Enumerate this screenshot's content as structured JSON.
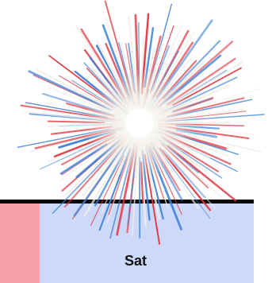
{
  "calendar": {
    "day_label": "Sat"
  },
  "colors": {
    "weekend_block": "#f9a1aa",
    "day_cell": "#cdd9f8",
    "header_rule": "#0a0a0a",
    "firework_red": "#e0303a",
    "firework_blue": "#3a7fd8",
    "firework_white": "#f2efe8"
  },
  "decoration": {
    "icon": "firework-icon"
  }
}
